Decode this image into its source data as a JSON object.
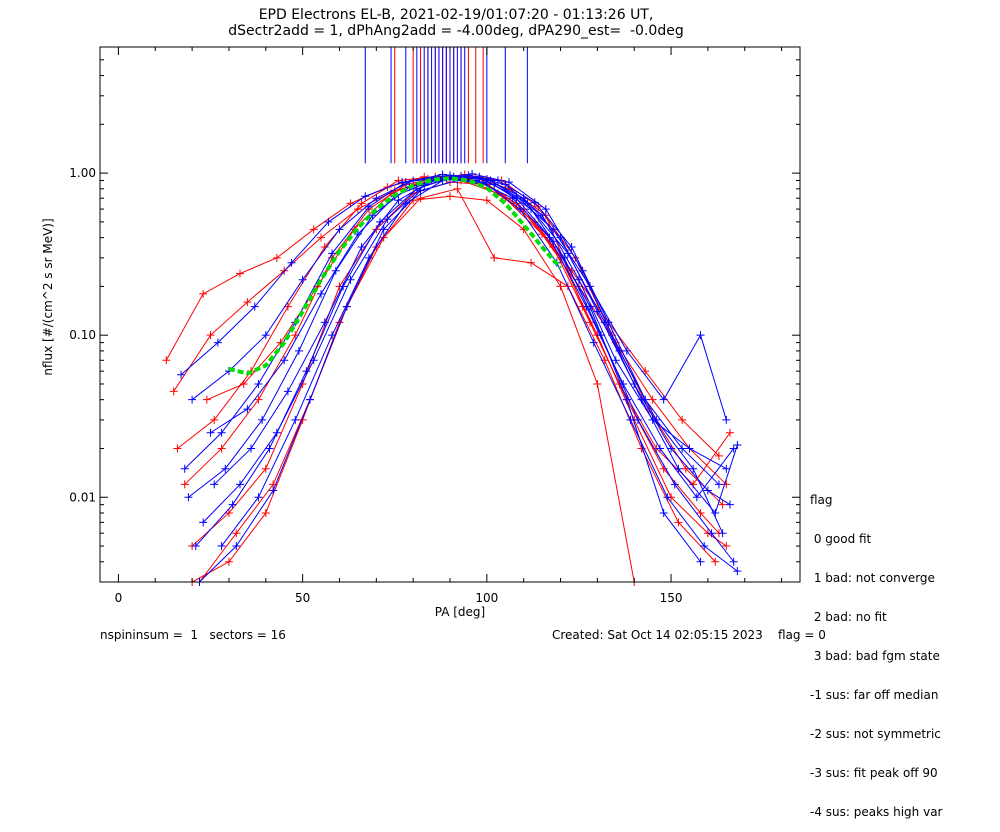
{
  "chart_data": {
    "type": "line",
    "title": "EPD Electrons EL-B, 2021-02-19/01:07:20 - 01:13:26 UT,",
    "subtitle": "dSectr2add = 1, dPhAng2add = -4.00deg, dPA290_est=  -0.0deg",
    "xlabel": "PA [deg]",
    "ylabel": "nflux [#/(cm^2 s sr MeV)]",
    "xlim": [
      -5,
      185
    ],
    "ylim": [
      0.003,
      6
    ],
    "yscale": "log",
    "xticks": [
      0,
      50,
      100,
      150
    ],
    "xtick_labels": [
      "0",
      "50",
      "100",
      "150"
    ],
    "yticks": [
      0.01,
      0.1,
      1.0
    ],
    "ytick_labels": [
      "0.01",
      "0.10",
      "1.00"
    ],
    "colors": {
      "red": "#ff0000",
      "blue": "#0000ff",
      "green": "#00dd00",
      "axis": "#000000"
    },
    "series": [
      {
        "color": "red",
        "x": [
          15,
          25,
          35,
          45,
          55,
          65,
          75,
          85,
          95,
          105,
          115,
          125,
          135,
          145,
          155,
          165
        ],
        "y": [
          0.045,
          0.1,
          0.16,
          0.25,
          0.4,
          0.6,
          0.78,
          0.9,
          0.92,
          0.7,
          0.42,
          0.2,
          0.09,
          0.04,
          0.02,
          0.012
        ]
      },
      {
        "color": "red",
        "x": [
          20,
          30,
          40,
          50,
          60,
          70,
          80,
          90,
          100,
          110,
          120,
          130,
          140,
          150,
          160,
          165
        ],
        "y": [
          0.005,
          0.008,
          0.015,
          0.05,
          0.2,
          0.45,
          0.75,
          0.88,
          0.85,
          0.6,
          0.3,
          0.1,
          0.03,
          0.01,
          0.006,
          0.005
        ]
      },
      {
        "color": "red",
        "x": [
          13,
          23,
          33,
          43,
          53,
          63,
          73,
          83,
          93,
          103,
          113,
          123,
          133,
          143,
          153,
          163
        ],
        "y": [
          0.07,
          0.18,
          0.24,
          0.3,
          0.45,
          0.65,
          0.82,
          0.95,
          0.9,
          0.75,
          0.5,
          0.25,
          0.12,
          0.06,
          0.03,
          0.018
        ]
      },
      {
        "color": "red",
        "x": [
          18,
          28,
          38,
          48,
          58,
          68,
          78,
          88,
          98,
          108,
          118,
          128,
          138,
          148,
          158,
          163
        ],
        "y": [
          0.012,
          0.02,
          0.04,
          0.1,
          0.3,
          0.6,
          0.85,
          0.95,
          0.92,
          0.65,
          0.35,
          0.12,
          0.04,
          0.015,
          0.008,
          0.006
        ]
      },
      {
        "color": "red",
        "x": [
          22,
          32,
          42,
          52,
          62,
          72,
          82,
          92,
          102,
          112,
          122,
          132,
          142,
          152,
          162
        ],
        "y": [
          0.003,
          0.006,
          0.012,
          0.04,
          0.15,
          0.4,
          0.7,
          0.8,
          0.3,
          0.28,
          0.2,
          0.07,
          0.02,
          0.007,
          0.004
        ]
      },
      {
        "color": "red",
        "x": [
          16,
          26,
          36,
          46,
          56,
          66,
          76,
          86,
          96,
          106,
          116,
          126,
          136,
          146,
          156,
          166
        ],
        "y": [
          0.02,
          0.03,
          0.06,
          0.15,
          0.35,
          0.65,
          0.9,
          0.95,
          0.96,
          0.8,
          0.55,
          0.15,
          0.05,
          0.02,
          0.012,
          0.025
        ]
      },
      {
        "color": "red",
        "x": [
          20,
          30,
          40,
          50,
          60,
          70,
          80,
          90,
          100,
          110,
          120,
          130,
          140
        ],
        "y": [
          0.003,
          0.004,
          0.008,
          0.03,
          0.12,
          0.35,
          0.68,
          0.72,
          0.68,
          0.45,
          0.2,
          0.05,
          0.003
        ]
      },
      {
        "color": "red",
        "x": [
          24,
          34,
          44,
          54,
          64,
          74,
          84,
          94,
          104,
          114,
          124,
          134,
          144,
          154,
          164
        ],
        "y": [
          0.04,
          0.05,
          0.09,
          0.2,
          0.45,
          0.75,
          0.92,
          0.98,
          0.9,
          0.62,
          0.3,
          0.1,
          0.035,
          0.015,
          0.009
        ]
      },
      {
        "color": "blue",
        "x": [
          17,
          27,
          37,
          47,
          57,
          67,
          77,
          87,
          97,
          107,
          117,
          127,
          137,
          147,
          157,
          167
        ],
        "y": [
          0.057,
          0.09,
          0.15,
          0.28,
          0.5,
          0.72,
          0.88,
          0.93,
          0.9,
          0.7,
          0.4,
          0.15,
          0.05,
          0.02,
          0.01,
          0.02
        ]
      },
      {
        "color": "blue",
        "x": [
          19,
          29,
          39,
          49,
          59,
          69,
          79,
          89,
          99,
          109,
          119,
          129,
          139,
          149,
          159,
          168
        ],
        "y": [
          0.01,
          0.015,
          0.03,
          0.08,
          0.25,
          0.55,
          0.82,
          0.93,
          0.88,
          0.6,
          0.28,
          0.09,
          0.03,
          0.01,
          0.005,
          0.0035
        ]
      },
      {
        "color": "blue",
        "x": [
          21,
          31,
          41,
          51,
          61,
          71,
          81,
          91,
          101,
          111,
          121,
          131,
          141,
          151,
          161,
          167
        ],
        "y": [
          0.005,
          0.009,
          0.02,
          0.06,
          0.2,
          0.5,
          0.8,
          0.95,
          0.9,
          0.65,
          0.3,
          0.1,
          0.03,
          0.012,
          0.006,
          0.004
        ]
      },
      {
        "color": "blue",
        "x": [
          25,
          35,
          45,
          55,
          65,
          75,
          85,
          95,
          105,
          115,
          125,
          135,
          145,
          155,
          165
        ],
        "y": [
          0.025,
          0.035,
          0.07,
          0.18,
          0.42,
          0.72,
          0.9,
          0.97,
          0.85,
          0.55,
          0.22,
          0.07,
          0.03,
          0.02,
          0.015
        ]
      },
      {
        "color": "blue",
        "x": [
          22,
          32,
          42,
          52,
          62,
          72,
          82,
          92,
          102,
          112,
          122,
          132,
          142,
          152,
          162,
          168
        ],
        "y": [
          0.003,
          0.005,
          0.011,
          0.04,
          0.15,
          0.45,
          0.78,
          0.9,
          0.85,
          0.6,
          0.32,
          0.12,
          0.04,
          0.015,
          0.008,
          0.021
        ]
      },
      {
        "color": "blue",
        "x": [
          18,
          28,
          38,
          48,
          58,
          68,
          78,
          88,
          98,
          108,
          118,
          128,
          138,
          148,
          158,
          165
        ],
        "y": [
          0.015,
          0.025,
          0.05,
          0.12,
          0.32,
          0.62,
          0.88,
          0.98,
          0.93,
          0.72,
          0.45,
          0.2,
          0.08,
          0.04,
          0.1,
          0.03
        ]
      },
      {
        "color": "blue",
        "x": [
          23,
          33,
          43,
          53,
          63,
          73,
          83,
          93,
          103,
          113,
          123,
          133,
          143,
          153,
          163
        ],
        "y": [
          0.007,
          0.012,
          0.025,
          0.07,
          0.22,
          0.52,
          0.84,
          0.96,
          0.9,
          0.66,
          0.35,
          0.12,
          0.04,
          0.02,
          0.012
        ]
      },
      {
        "color": "blue",
        "x": [
          20,
          30,
          40,
          50,
          60,
          70,
          80,
          90,
          100,
          110,
          120,
          130,
          140,
          150,
          160,
          166
        ],
        "y": [
          0.04,
          0.06,
          0.1,
          0.22,
          0.45,
          0.7,
          0.9,
          0.97,
          0.92,
          0.7,
          0.4,
          0.14,
          0.05,
          0.02,
          0.011,
          0.009
        ]
      },
      {
        "color": "blue",
        "x": [
          28,
          38,
          48,
          58,
          68,
          78,
          88,
          98,
          108,
          118,
          128,
          138,
          148,
          158
        ],
        "y": [
          0.005,
          0.01,
          0.03,
          0.1,
          0.3,
          0.65,
          0.9,
          0.95,
          0.7,
          0.38,
          0.15,
          0.04,
          0.008,
          0.004
        ]
      },
      {
        "color": "blue",
        "x": [
          26,
          36,
          46,
          56,
          66,
          76,
          86,
          96,
          106,
          116,
          126,
          136,
          146,
          156,
          164
        ],
        "y": [
          0.012,
          0.02,
          0.045,
          0.12,
          0.35,
          0.68,
          0.92,
          0.99,
          0.88,
          0.6,
          0.25,
          0.08,
          0.03,
          0.015,
          0.006
        ]
      }
    ],
    "fit": {
      "color": "green",
      "x": [
        30,
        35,
        40,
        45,
        50,
        55,
        60,
        65,
        70,
        75,
        80,
        85,
        90,
        95,
        100,
        105,
        110,
        115,
        120
      ],
      "y": [
        0.062,
        0.058,
        0.065,
        0.09,
        0.14,
        0.22,
        0.33,
        0.46,
        0.6,
        0.73,
        0.84,
        0.91,
        0.93,
        0.9,
        0.81,
        0.65,
        0.48,
        0.35,
        0.26
      ]
    },
    "top_ticks": {
      "red": [
        75,
        80,
        82,
        84,
        86,
        87,
        88,
        89,
        90,
        91,
        93,
        95,
        97,
        99
      ],
      "blue": [
        67,
        74,
        78,
        81,
        83,
        84,
        85,
        86,
        87,
        88,
        89,
        90,
        91,
        92,
        93,
        94,
        100,
        105,
        111
      ]
    }
  },
  "footer": {
    "left": "nspininsum =  1   sectors = 16",
    "right": "Created: Sat Oct 14 02:05:15 2023    flag = 0"
  },
  "legend": {
    "lines": [
      "flag",
      " 0 good fit",
      " 1 bad: not converge",
      " 2 bad: no fit",
      " 3 bad: bad fgm state",
      "-1 sus: far off median",
      "-2 sus: not symmetric",
      "-3 sus: fit peak off 90",
      "-4 sus: peaks high var"
    ]
  }
}
